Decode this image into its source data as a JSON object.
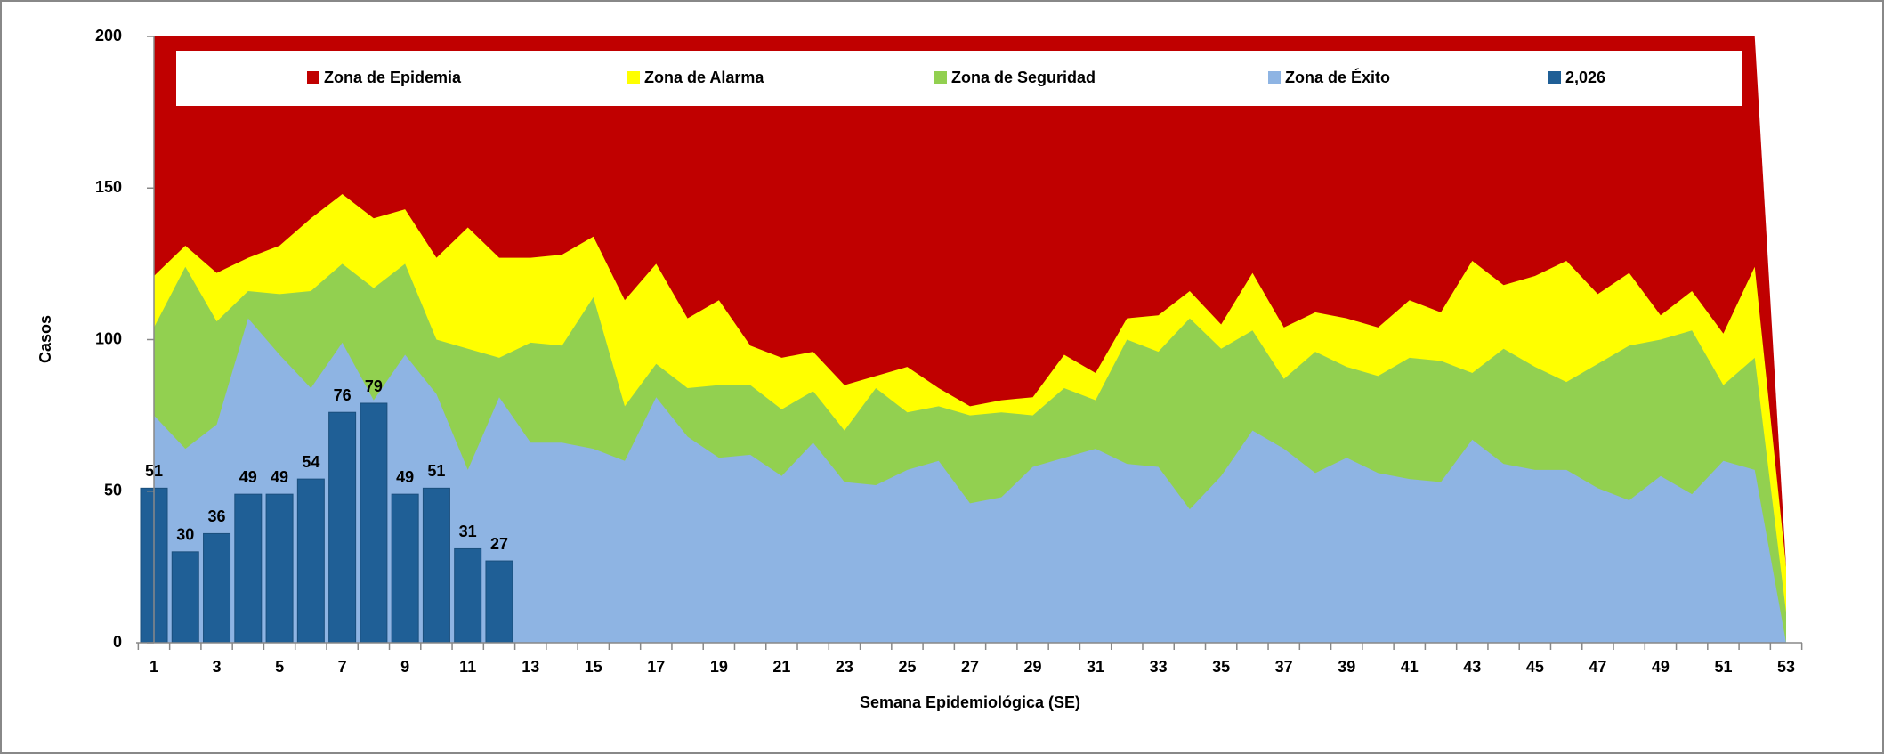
{
  "chart_data": {
    "type": "area",
    "xlabel": "Semana Epidemiológica (SE)",
    "ylabel": "Casos",
    "categories": [
      "1",
      null,
      "3",
      null,
      "5",
      null,
      "7",
      null,
      "9",
      null,
      "11",
      null,
      "13",
      null,
      "15",
      null,
      "17",
      null,
      "19",
      null,
      "21",
      null,
      "23",
      null,
      "25",
      null,
      "27",
      null,
      "29",
      null,
      "31",
      null,
      "33",
      null,
      "35",
      null,
      "37",
      null,
      "39",
      null,
      "41",
      null,
      "43",
      null,
      "45",
      null,
      "47",
      null,
      "49",
      null,
      "51",
      null,
      "53"
    ],
    "ylim": [
      0,
      200
    ],
    "yticks": [
      0,
      50,
      100,
      150,
      200
    ],
    "legend": "top",
    "series": [
      {
        "name": "Zona de Epidemia",
        "type": "area",
        "color": "#c00000",
        "values": [
          200,
          200,
          200,
          200,
          200,
          200,
          200,
          200,
          200,
          200,
          200,
          200,
          200,
          200,
          200,
          200,
          200,
          200,
          200,
          200,
          200,
          200,
          200,
          200,
          200,
          200,
          200,
          200,
          200,
          200,
          200,
          200,
          200,
          200,
          200,
          200,
          200,
          200,
          200,
          200,
          200,
          200,
          200,
          200,
          200,
          200,
          200,
          200,
          200,
          200,
          200,
          200,
          25
        ]
      },
      {
        "name": "Zona de Alarma",
        "type": "area",
        "color": "#ffff00",
        "values": [
          121,
          131,
          122,
          127,
          131,
          140,
          148,
          140,
          143,
          127,
          137,
          127,
          127,
          128,
          134,
          113,
          125,
          107,
          113,
          98,
          94,
          96,
          85,
          88,
          91,
          84,
          78,
          80,
          81,
          95,
          89,
          107,
          108,
          116,
          105,
          122,
          104,
          109,
          107,
          104,
          113,
          109,
          126,
          118,
          121,
          126,
          115,
          122,
          108,
          116,
          102,
          124,
          25
        ]
      },
      {
        "name": "Zona de Seguridad",
        "type": "area",
        "color": "#92d050",
        "values": [
          104,
          124,
          106,
          116,
          115,
          116,
          125,
          117,
          125,
          100,
          97,
          94,
          99,
          98,
          114,
          78,
          92,
          84,
          85,
          85,
          77,
          83,
          70,
          84,
          76,
          78,
          75,
          76,
          75,
          84,
          80,
          100,
          96,
          107,
          97,
          103,
          87,
          96,
          91,
          88,
          94,
          93,
          89,
          97,
          91,
          86,
          92,
          98,
          100,
          103,
          85,
          94,
          10
        ]
      },
      {
        "name": "Zona de Éxito",
        "type": "area",
        "color": "#8eb4e3",
        "values": [
          75,
          64,
          72,
          107,
          95,
          84,
          99,
          80,
          95,
          82,
          57,
          81,
          66,
          66,
          64,
          60,
          81,
          68,
          61,
          62,
          55,
          66,
          53,
          52,
          57,
          60,
          46,
          48,
          58,
          61,
          64,
          59,
          58,
          44,
          55,
          70,
          64,
          56,
          61,
          56,
          54,
          53,
          67,
          59,
          57,
          57,
          51,
          47,
          55,
          49,
          60,
          57,
          0
        ]
      },
      {
        "name": "2,026",
        "type": "bar",
        "color": "#1f5f96",
        "values": [
          51,
          30,
          36,
          49,
          49,
          54,
          76,
          79,
          49,
          51,
          31,
          27,
          null,
          null,
          null,
          null,
          null,
          null,
          null,
          null,
          null,
          null,
          null,
          null,
          null,
          null,
          null,
          null,
          null,
          null,
          null,
          null,
          null,
          null,
          null,
          null,
          null,
          null,
          null,
          null,
          null,
          null,
          null,
          null,
          null,
          null,
          null,
          null,
          null,
          null,
          null,
          null,
          null
        ]
      }
    ]
  }
}
